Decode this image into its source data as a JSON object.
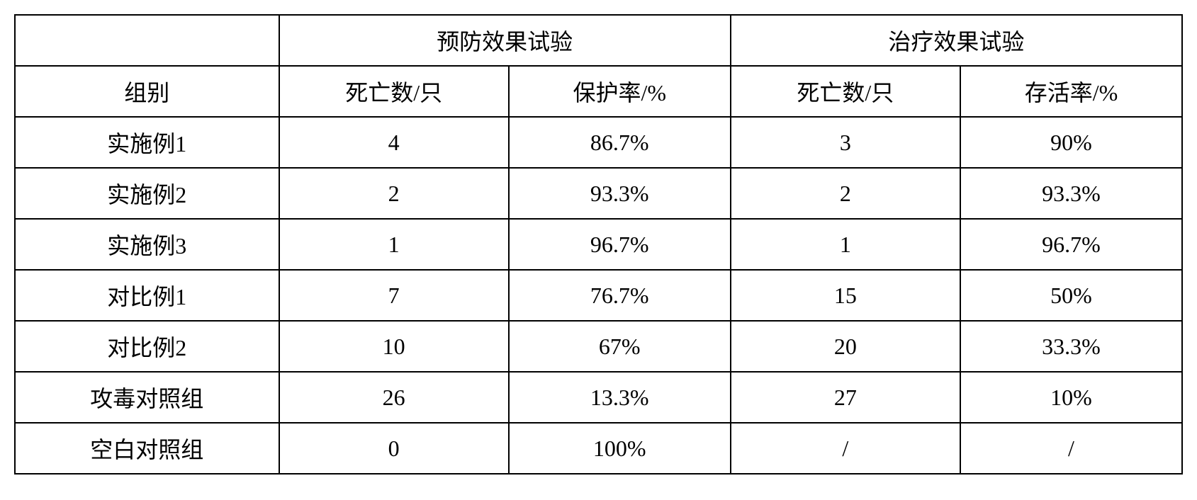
{
  "table": {
    "header_groups": {
      "prevention": "预防效果试验",
      "treatment": "治疗效果试验"
    },
    "column_headers": {
      "group": "组别",
      "prev_deaths": "死亡数/只",
      "prev_protection": "保护率/%",
      "treat_deaths": "死亡数/只",
      "treat_survival": "存活率/%"
    },
    "rows": [
      {
        "group": "实施例1",
        "prev_deaths": "4",
        "prev_protection": "86.7%",
        "treat_deaths": "3",
        "treat_survival": "90%"
      },
      {
        "group": "实施例2",
        "prev_deaths": "2",
        "prev_protection": "93.3%",
        "treat_deaths": "2",
        "treat_survival": "93.3%"
      },
      {
        "group": "实施例3",
        "prev_deaths": "1",
        "prev_protection": "96.7%",
        "treat_deaths": "1",
        "treat_survival": "96.7%"
      },
      {
        "group": "对比例1",
        "prev_deaths": "7",
        "prev_protection": "76.7%",
        "treat_deaths": "15",
        "treat_survival": "50%"
      },
      {
        "group": "对比例2",
        "prev_deaths": "10",
        "prev_protection": "67%",
        "treat_deaths": "20",
        "treat_survival": "33.3%"
      },
      {
        "group": "攻毒对照组",
        "prev_deaths": "26",
        "prev_protection": "13.3%",
        "treat_deaths": "27",
        "treat_survival": "10%"
      },
      {
        "group": "空白对照组",
        "prev_deaths": "0",
        "prev_protection": "100%",
        "treat_deaths": "/",
        "treat_survival": "/"
      }
    ],
    "styling": {
      "border_color": "#000000",
      "border_width": 2,
      "background_color": "#ffffff",
      "text_color": "#000000",
      "font_size": 32,
      "font_family": "SimSun",
      "cell_padding": 12,
      "column_widths_percent": [
        20,
        20,
        20,
        20,
        20
      ]
    }
  }
}
